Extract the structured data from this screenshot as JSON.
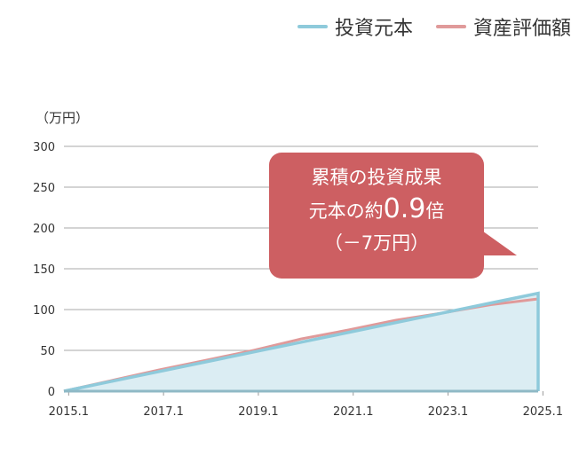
{
  "chart_data": {
    "type": "area",
    "ylabel": "（万円）",
    "ylim": [
      0,
      300
    ],
    "yticks": [
      0,
      50,
      100,
      150,
      200,
      250,
      300
    ],
    "xlim": [
      2015,
      2025
    ],
    "xticks": [
      "2015.1",
      "2017.1",
      "2019.1",
      "2021.1",
      "2023.1",
      "2025.1"
    ],
    "x": [
      2015,
      2016,
      2017,
      2018,
      2019,
      2020,
      2021,
      2022,
      2023,
      2024,
      2025
    ],
    "grid": true,
    "legend_placement": "top-right",
    "series": [
      {
        "name": "投資元本",
        "color": "#8ecadb",
        "fill": "#dbedf3",
        "values": [
          0,
          12,
          24,
          36,
          48,
          60,
          72,
          84,
          96,
          108,
          120
        ]
      },
      {
        "name": "資産評価額",
        "color": "#e09a9a",
        "values": [
          0,
          13,
          26,
          38,
          50,
          64,
          75,
          87,
          96,
          106,
          113
        ]
      }
    ]
  },
  "callout": {
    "line1": "累積の投資成果",
    "line2_pre": "元本の約",
    "line2_big": "0.9",
    "line2_post": "倍",
    "line3": "（－7万円）",
    "color": "#cd5f62"
  }
}
